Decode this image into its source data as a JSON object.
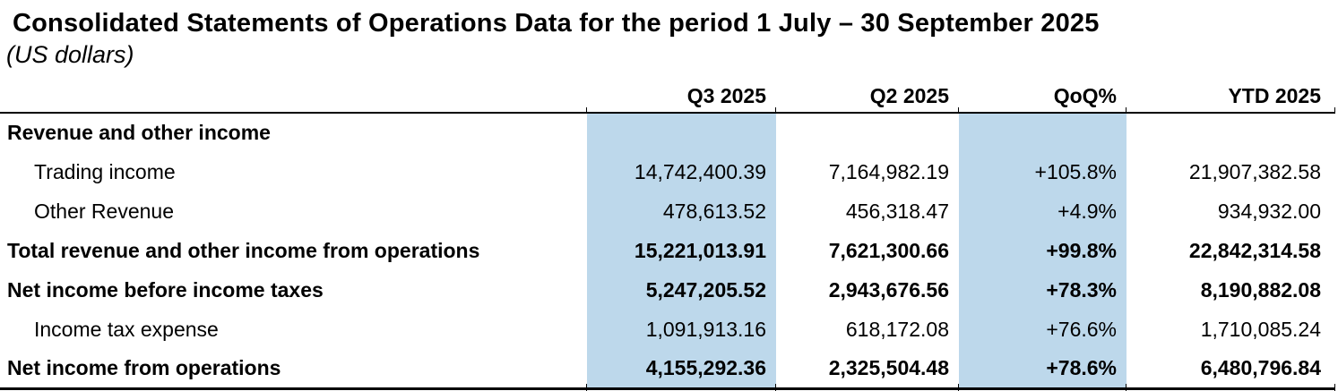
{
  "title": "Consolidated Statements of Operations Data for the period 1 July – 30 September 2025",
  "subtitle": "(US dollars)",
  "table": {
    "highlight_color": "#BDD8EB",
    "columns": [
      "",
      "Q3 2025",
      "Q2 2025",
      "QoQ%",
      "YTD 2025"
    ],
    "rows": [
      {
        "label": "Revenue and other income",
        "type": "section",
        "values": [
          "",
          "",
          "",
          ""
        ]
      },
      {
        "label": "Trading income",
        "type": "detail",
        "values": [
          "14,742,400.39",
          "7,164,982.19",
          "+105.8%",
          "21,907,382.58"
        ]
      },
      {
        "label": "Other Revenue",
        "type": "detail",
        "values": [
          "478,613.52",
          "456,318.47",
          "+4.9%",
          "934,932.00"
        ]
      },
      {
        "label": "Total revenue and other income from operations",
        "type": "total",
        "values": [
          "15,221,013.91",
          "7,621,300.66",
          "+99.8%",
          "22,842,314.58"
        ]
      },
      {
        "label": "Net income before income taxes",
        "type": "total",
        "values": [
          "5,247,205.52",
          "2,943,676.56",
          "+78.3%",
          "8,190,882.08"
        ]
      },
      {
        "label": "Income tax expense",
        "type": "detail",
        "values": [
          "1,091,913.16",
          "618,172.08",
          "+76.6%",
          "1,710,085.24"
        ]
      },
      {
        "label": "Net income from operations",
        "type": "total",
        "values": [
          "4,155,292.36",
          "2,325,504.48",
          "+78.6%",
          "6,480,796.84"
        ]
      }
    ]
  }
}
